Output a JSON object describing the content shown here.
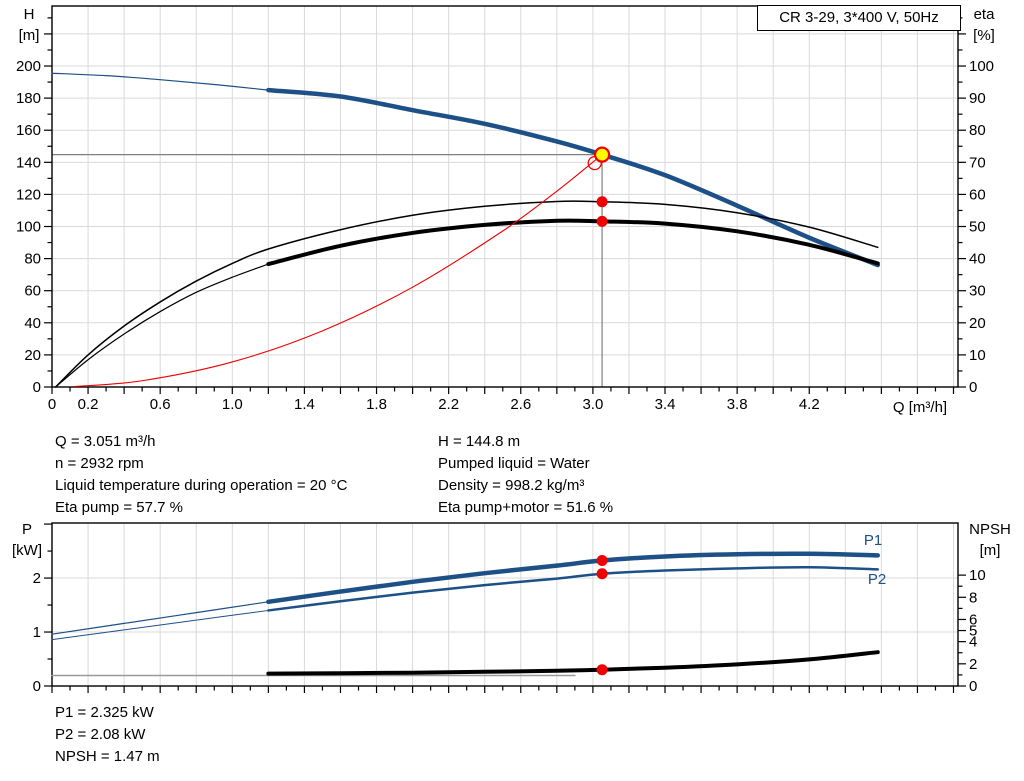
{
  "header": {
    "model": "CR 3-29, 3*400 V, 50Hz"
  },
  "info": {
    "col1": [
      "Q = 3.051 m³/h",
      "n = 2932 rpm",
      "Liquid temperature during operation = 20 °C",
      "Eta pump = 57.7 %"
    ],
    "col2": [
      "H = 144.8 m",
      "Pumped liquid = Water",
      "Density = 998.2 kg/m³",
      "Eta pump+motor = 51.6 %"
    ],
    "bottom": [
      "P1 = 2.325 kW",
      "P2 = 2.08 kW",
      "NPSH = 1.47 m"
    ]
  },
  "colors": {
    "curve_blue": "#1d5086",
    "marker_red": "#f10000",
    "duty_yellow": "#ffff00",
    "grid": "#d9d9d9",
    "crosshair": "#7f7f7f"
  },
  "chart_data": [
    {
      "id": "hq",
      "type": "line",
      "x_axis": {
        "label": "Q [m³/h]",
        "min": 0,
        "max": 5.025,
        "minor_step": 0.1,
        "major_step": 0.2,
        "show_labels": true,
        "labels": [
          [
            0,
            "0"
          ],
          [
            0.2,
            "0.2"
          ],
          [
            0.6,
            "0.6"
          ],
          [
            1,
            "1.0"
          ],
          [
            1.4,
            "1.4"
          ],
          [
            1.8,
            "1.8"
          ],
          [
            2.2,
            "2.2"
          ],
          [
            2.6,
            "2.6"
          ],
          [
            3,
            "3.0"
          ],
          [
            3.4,
            "3.4"
          ],
          [
            3.8,
            "3.8"
          ],
          [
            4.2,
            "4.2"
          ]
        ]
      },
      "left_axis": {
        "title": [
          "H",
          "[m]"
        ],
        "min": 0,
        "max": 237.4,
        "minor_step": 10,
        "major_step": 20,
        "labels": [
          [
            0,
            "0"
          ],
          [
            20,
            "20"
          ],
          [
            40,
            "40"
          ],
          [
            60,
            "60"
          ],
          [
            80,
            "80"
          ],
          [
            100,
            "100"
          ],
          [
            120,
            "120"
          ],
          [
            140,
            "140"
          ],
          [
            160,
            "160"
          ],
          [
            180,
            "180"
          ],
          [
            200,
            "200"
          ]
        ]
      },
      "right_axis": {
        "title": [
          "eta",
          "[%]"
        ],
        "min": 0,
        "max": 118.7,
        "minor_step": 5,
        "major_step": 10,
        "labels": [
          [
            0,
            "0"
          ],
          [
            10,
            "10"
          ],
          [
            20,
            "20"
          ],
          [
            30,
            "30"
          ],
          [
            40,
            "40"
          ],
          [
            50,
            "50"
          ],
          [
            60,
            "60"
          ],
          [
            70,
            "70"
          ],
          [
            80,
            "80"
          ],
          [
            90,
            "90"
          ],
          [
            100,
            "100"
          ]
        ]
      },
      "grid_h_axis": "left",
      "grid_h": [
        20,
        40,
        60,
        80,
        100,
        120,
        140,
        160,
        180,
        200,
        220
      ],
      "series": [
        {
          "id": "h-curve-thin",
          "axis": "left",
          "color": "#1d5086",
          "width": 1.2,
          "points": [
            [
              0,
              195.5
            ],
            [
              0.3,
              194
            ],
            [
              0.6,
              191.5
            ],
            [
              0.9,
              188.5
            ],
            [
              1.2,
              185
            ]
          ]
        },
        {
          "id": "h-curve",
          "axis": "left",
          "color": "#1d5086",
          "width": 4.5,
          "points": [
            [
              1.2,
              185
            ],
            [
              1.6,
              181
            ],
            [
              2.0,
              172.5
            ],
            [
              2.4,
              164
            ],
            [
              2.8,
              153
            ],
            [
              3.051,
              144.8
            ],
            [
              3.4,
              132
            ],
            [
              3.8,
              113
            ],
            [
              4.2,
              93
            ],
            [
              4.58,
              76
            ]
          ]
        },
        {
          "id": "eta-pump-curve",
          "axis": "right",
          "color": "#000000",
          "width": 1.5,
          "points": [
            [
              0.02,
              0
            ],
            [
              0.2,
              10
            ],
            [
              0.4,
              19
            ],
            [
              0.6,
              26.5
            ],
            [
              0.8,
              33
            ],
            [
              1.0,
              38.5
            ],
            [
              1.2,
              43
            ],
            [
              1.6,
              49
            ],
            [
              2.0,
              53.5
            ],
            [
              2.4,
              56.3
            ],
            [
              2.8,
              57.8
            ],
            [
              3.051,
              57.7
            ],
            [
              3.4,
              56.9
            ],
            [
              3.8,
              54.3
            ],
            [
              4.2,
              49.8
            ],
            [
              4.58,
              43.5
            ]
          ]
        },
        {
          "id": "eta-pump-motor-curve-thin",
          "axis": "right",
          "color": "#000000",
          "width": 1.2,
          "points": [
            [
              0.02,
              0
            ],
            [
              0.2,
              8.5
            ],
            [
              0.4,
              16.5
            ],
            [
              0.6,
              23.5
            ],
            [
              0.8,
              29.5
            ],
            [
              1.0,
              34.2
            ],
            [
              1.2,
              38.3
            ]
          ]
        },
        {
          "id": "eta-pump-motor-curve",
          "axis": "right",
          "color": "#000000",
          "width": 4,
          "points": [
            [
              1.2,
              38.3
            ],
            [
              1.6,
              44
            ],
            [
              2.0,
              48
            ],
            [
              2.4,
              50.5
            ],
            [
              2.8,
              51.8
            ],
            [
              3.051,
              51.6
            ],
            [
              3.4,
              50.9
            ],
            [
              3.8,
              48.5
            ],
            [
              4.2,
              44.3
            ],
            [
              4.58,
              38.5
            ]
          ]
        },
        {
          "id": "system-curve",
          "axis": "left",
          "color": "#f10000",
          "width": 1.1,
          "points": [
            [
              0.12,
              0.3
            ],
            [
              0.5,
              3.9
            ],
            [
              1.0,
              15.6
            ],
            [
              1.5,
              35
            ],
            [
              2.0,
              62.2
            ],
            [
              2.5,
              97.2
            ],
            [
              2.8,
              122
            ],
            [
              3.051,
              144.8
            ]
          ]
        }
      ],
      "crosshair": {
        "q": 3.051,
        "v": 144.8,
        "axis": "left",
        "color": "#7f7f7f",
        "width": 1.2
      },
      "markers": [
        {
          "id": "system-endpoint-circle",
          "axis": "left",
          "q": 3.01,
          "v": 139.5,
          "r": 6.5,
          "fill": "none",
          "stroke": "#f10000",
          "stroke_width": 1.3
        },
        {
          "id": "eta-pump-dot",
          "axis": "right",
          "q": 3.051,
          "v": 57.7,
          "r": 5.5,
          "fill": "#f10000"
        },
        {
          "id": "eta-pump-motor-dot",
          "axis": "right",
          "q": 3.051,
          "v": 51.6,
          "r": 5.5,
          "fill": "#f10000"
        },
        {
          "id": "duty-point-marker",
          "axis": "left",
          "q": 3.051,
          "v": 144.8,
          "r": 7,
          "fill": "#ffff00",
          "stroke": "#f10000",
          "stroke_width": 2.2,
          "interactable": true
        }
      ],
      "labels": []
    },
    {
      "id": "pn",
      "type": "line",
      "x_axis": {
        "label": "",
        "min": 0,
        "max": 5.025,
        "minor_step": 0.1,
        "major_step": 0.2,
        "show_labels": false,
        "labels": []
      },
      "left_axis": {
        "title": [
          "P",
          "[kW]"
        ],
        "min": 0,
        "max": 3.02,
        "minor_step": 0.5,
        "major_step": 1,
        "labels": [
          [
            0,
            "0"
          ],
          [
            1,
            "1"
          ],
          [
            2,
            "2"
          ]
        ]
      },
      "right_axis": {
        "title": [
          "NPSH",
          "[m]"
        ],
        "min": 0,
        "max": 14.7,
        "major_list": [
          0,
          2,
          4,
          5,
          6,
          8,
          10
        ],
        "minor_list": [
          1,
          3,
          7,
          9
        ],
        "labels": [
          [
            0,
            "0"
          ],
          [
            2,
            "2"
          ],
          [
            4,
            "4"
          ],
          [
            5,
            "5"
          ],
          [
            6,
            "6"
          ],
          [
            8,
            "8"
          ],
          [
            10,
            "10"
          ]
        ]
      },
      "grid_h_axis": "left",
      "grid_h": [
        1,
        2
      ],
      "series": [
        {
          "id": "p1-curve-thin",
          "axis": "left",
          "color": "#1d5086",
          "width": 1.2,
          "points": [
            [
              0,
              0.96
            ],
            [
              0.4,
              1.16
            ],
            [
              0.8,
              1.36
            ],
            [
              1.2,
              1.56
            ]
          ]
        },
        {
          "id": "p1-curve",
          "axis": "left",
          "color": "#1d5086",
          "width": 4.5,
          "points": [
            [
              1.2,
              1.56
            ],
            [
              1.6,
              1.75
            ],
            [
              2.0,
              1.93
            ],
            [
              2.4,
              2.09
            ],
            [
              2.8,
              2.23
            ],
            [
              3.051,
              2.325
            ],
            [
              3.4,
              2.4
            ],
            [
              3.8,
              2.44
            ],
            [
              4.2,
              2.45
            ],
            [
              4.58,
              2.42
            ]
          ]
        },
        {
          "id": "p2-curve-thin",
          "axis": "left",
          "color": "#1d5086",
          "width": 1,
          "points": [
            [
              0,
              0.86
            ],
            [
              0.4,
              1.04
            ],
            [
              0.8,
              1.22
            ],
            [
              1.2,
              1.4
            ]
          ]
        },
        {
          "id": "p2-curve",
          "axis": "left",
          "color": "#1d5086",
          "width": 2.5,
          "points": [
            [
              1.2,
              1.4
            ],
            [
              1.6,
              1.57
            ],
            [
              2.0,
              1.73
            ],
            [
              2.4,
              1.87
            ],
            [
              2.8,
              1.99
            ],
            [
              3.051,
              2.08
            ],
            [
              3.4,
              2.14
            ],
            [
              3.8,
              2.18
            ],
            [
              4.2,
              2.2
            ],
            [
              4.58,
              2.16
            ]
          ]
        },
        {
          "id": "npsh-baseline",
          "axis": "right",
          "color": "#9a9a9a",
          "width": 1.5,
          "points": [
            [
              0,
              0.95
            ],
            [
              1.5,
              0.95
            ],
            [
              2.9,
              0.95
            ]
          ]
        },
        {
          "id": "npsh-curve",
          "axis": "right",
          "color": "#000000",
          "width": 4,
          "points": [
            [
              1.2,
              1.12
            ],
            [
              1.6,
              1.15
            ],
            [
              2.0,
              1.2
            ],
            [
              2.4,
              1.28
            ],
            [
              2.8,
              1.38
            ],
            [
              3.051,
              1.47
            ],
            [
              3.4,
              1.65
            ],
            [
              3.8,
              1.95
            ],
            [
              4.2,
              2.4
            ],
            [
              4.58,
              3.05
            ]
          ]
        }
      ],
      "crosshair": null,
      "markers": [
        {
          "id": "p1-dot",
          "axis": "left",
          "q": 3.051,
          "v": 2.325,
          "r": 5.5,
          "fill": "#f10000"
        },
        {
          "id": "p2-dot",
          "axis": "left",
          "q": 3.051,
          "v": 2.08,
          "r": 5.5,
          "fill": "#f10000"
        },
        {
          "id": "npsh-dot",
          "axis": "right",
          "q": 3.051,
          "v": 1.47,
          "r": 5.5,
          "fill": "#f10000"
        }
      ],
      "labels": [
        {
          "x": 873,
          "y": 545,
          "text": "P1",
          "color": "#1d5086"
        },
        {
          "x": 877,
          "y": 584,
          "text": "P2",
          "color": "#1d5086"
        }
      ]
    }
  ]
}
